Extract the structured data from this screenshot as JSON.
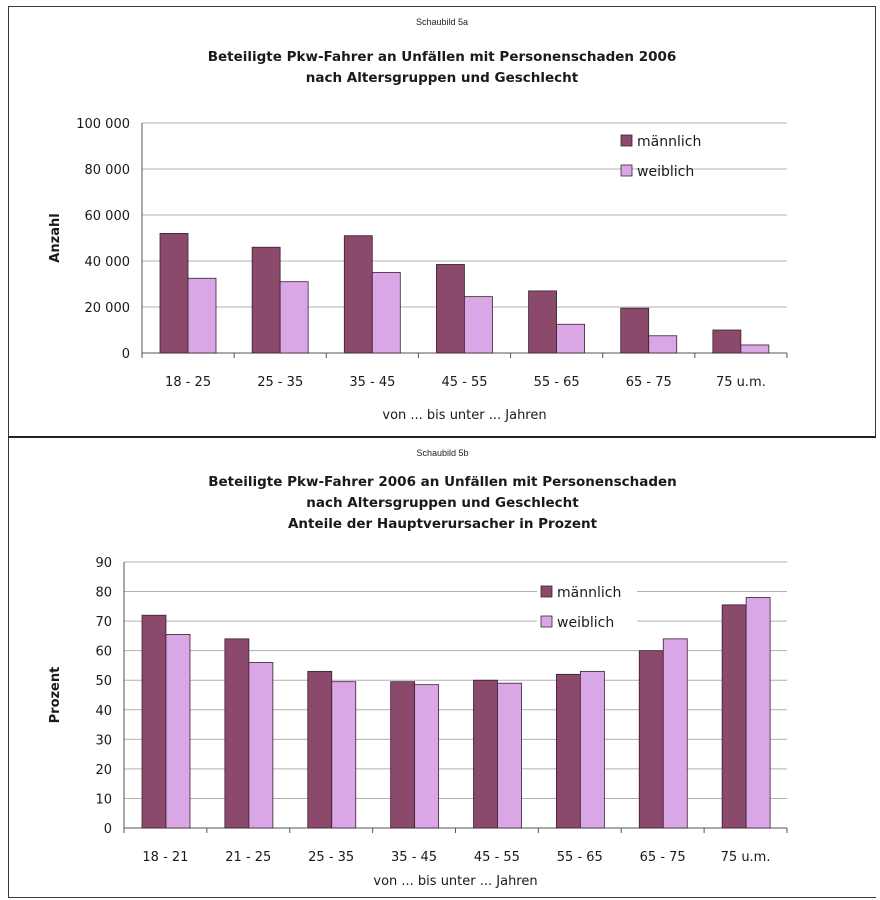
{
  "charts": {
    "a": {
      "label": "Schaubild 5a",
      "title_lines": [
        "Beteiligte Pkw-Fahrer an Unfällen mit Personenschaden 2006",
        "nach Altersgruppen und Geschlecht"
      ]
    },
    "b": {
      "label": "Schaubild 5b",
      "title_lines": [
        "Beteiligte Pkw-Fahrer 2006  an Unfällen mit Personenschaden",
        "nach Altersgruppen und Geschlecht",
        "Anteile der Hauptverursacher in Prozent"
      ]
    }
  },
  "colors": {
    "male": "#8b4a6b",
    "female": "#d9a6e6",
    "outline": "#3a2030"
  },
  "chart_data": [
    {
      "type": "bar",
      "title": "Beteiligte Pkw-Fahrer an Unfällen mit Personenschaden 2006 nach Altersgruppen und Geschlecht",
      "categories": [
        "18 - 25",
        "25 - 35",
        "35 - 45",
        "45 - 55",
        "55 - 65",
        "65 - 75",
        "75 u.m."
      ],
      "series": [
        {
          "name": "männlich",
          "values": [
            52000,
            46000,
            51000,
            38500,
            27000,
            19500,
            10000
          ]
        },
        {
          "name": "weiblich",
          "values": [
            32500,
            31000,
            35000,
            24500,
            12500,
            7500,
            3500
          ]
        }
      ],
      "xlabel": "von ... bis unter ... Jahren",
      "ylabel": "Anzahl",
      "ylim": [
        0,
        100000
      ],
      "yticks": [
        0,
        20000,
        40000,
        60000,
        80000,
        100000
      ],
      "ytick_labels": [
        "0",
        "20 000",
        "40 000",
        "60 000",
        "80 000",
        "100 000"
      ],
      "grid": true,
      "legend_position": "top-right"
    },
    {
      "type": "bar",
      "title": "Beteiligte Pkw-Fahrer 2006 an Unfällen mit Personenschaden nach Altersgruppen und Geschlecht Anteile der Hauptverursacher in Prozent",
      "categories": [
        "18 - 21",
        "21 - 25",
        "25 - 35",
        "35 - 45",
        "45 - 55",
        "55 - 65",
        "65 - 75",
        "75 u.m."
      ],
      "series": [
        {
          "name": "männlich",
          "values": [
            72,
            64,
            53,
            49.5,
            50,
            52,
            60,
            75.5
          ]
        },
        {
          "name": "weiblich",
          "values": [
            65.5,
            56,
            49.5,
            48.5,
            49,
            53,
            64,
            78
          ]
        }
      ],
      "xlabel": "von ... bis unter ... Jahren",
      "ylabel": "Prozent",
      "ylim": [
        0,
        90
      ],
      "yticks": [
        0,
        10,
        20,
        30,
        40,
        50,
        60,
        70,
        80,
        90
      ],
      "ytick_labels": [
        "0",
        "10",
        "20",
        "30",
        "40",
        "50",
        "60",
        "70",
        "80",
        "90"
      ],
      "grid": true,
      "legend_position": "top-right"
    }
  ]
}
